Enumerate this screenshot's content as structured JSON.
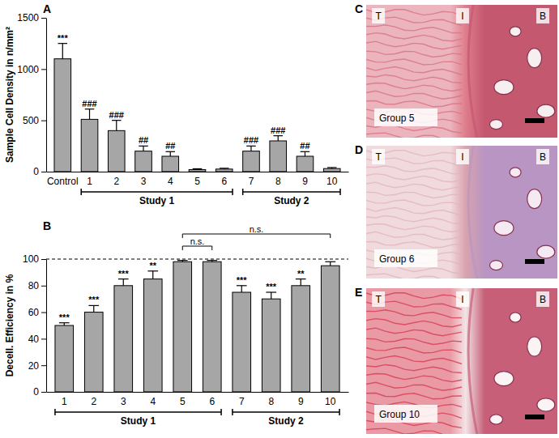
{
  "chart_data": [
    {
      "type": "bar",
      "panel": "A",
      "y_label": "Sample Cell Density in n/mm²",
      "categories": [
        "Control",
        "1",
        "2",
        "3",
        "4",
        "5",
        "6",
        "7",
        "8",
        "9",
        "10"
      ],
      "values": [
        1100,
        510,
        400,
        200,
        150,
        20,
        25,
        200,
        300,
        150,
        30
      ],
      "errors": [
        150,
        100,
        100,
        50,
        45,
        8,
        8,
        50,
        50,
        45,
        10
      ],
      "annotations": [
        "***",
        "###",
        "###",
        "##",
        "##",
        null,
        null,
        "###",
        "###",
        "##",
        null
      ],
      "groups": [
        {
          "label": "Study 1",
          "first": "1",
          "last": "6"
        },
        {
          "label": "Study 2",
          "first": "7",
          "last": "10"
        }
      ],
      "color": "#a6a6a6",
      "ylim": [
        0,
        1500
      ],
      "yticks": [
        0,
        500,
        1000,
        1500
      ]
    },
    {
      "type": "bar",
      "panel": "B",
      "y_label": "Decell. Efficiency in %",
      "categories": [
        "1",
        "2",
        "3",
        "4",
        "5",
        "6",
        "7",
        "8",
        "9",
        "10"
      ],
      "values": [
        50,
        60,
        80,
        85,
        98,
        98,
        75,
        70,
        80,
        95
      ],
      "errors": [
        2,
        5,
        5,
        6,
        1,
        1,
        5,
        5,
        5,
        3
      ],
      "annotations": [
        "***",
        "***",
        "***",
        "**",
        null,
        null,
        "***",
        "***",
        "**",
        null
      ],
      "brackets": [
        {
          "label": "n.s.",
          "from": "5",
          "to": "6"
        },
        {
          "label": "n.s.",
          "from": "5",
          "to": "10"
        }
      ],
      "reference_line": {
        "value": 100,
        "line_style": "dashed"
      },
      "groups": [
        {
          "label": "Study 1",
          "first": "1",
          "last": "6"
        },
        {
          "label": "Study 2",
          "first": "7",
          "last": "10"
        }
      ],
      "color": "#a6a6a6",
      "ylim": [
        0,
        100
      ],
      "yticks": [
        0,
        20,
        40,
        60,
        80,
        100
      ]
    }
  ],
  "images": [
    {
      "panel": "C",
      "regions": [
        "T",
        "I",
        "B"
      ],
      "caption": "Group 5"
    },
    {
      "panel": "D",
      "regions": [
        "T",
        "I",
        "B"
      ],
      "caption": "Group 6"
    },
    {
      "panel": "E",
      "regions": [
        "T",
        "I",
        "B"
      ],
      "caption": "Group 10"
    }
  ]
}
